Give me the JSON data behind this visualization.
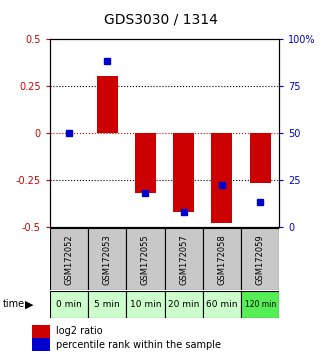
{
  "title": "GDS3030 / 1314",
  "samples": [
    "GSM172052",
    "GSM172053",
    "GSM172055",
    "GSM172057",
    "GSM172058",
    "GSM172059"
  ],
  "time_labels": [
    "0 min",
    "5 min",
    "10 min",
    "20 min",
    "60 min",
    "120 min"
  ],
  "log2_ratio": [
    0.0,
    0.3,
    -0.32,
    -0.42,
    -0.48,
    -0.27
  ],
  "percentile_rank": [
    50.0,
    88.0,
    18.0,
    8.0,
    22.0,
    13.0
  ],
  "ylim_left": [
    -0.5,
    0.5
  ],
  "ylim_right": [
    0,
    100
  ],
  "bar_color": "#cc0000",
  "dot_color": "#0000cc",
  "bg_color_main": "#ffffff",
  "bg_color_sample": "#c8c8c8",
  "bg_color_time_light": "#ccffcc",
  "bg_color_time_dark": "#55ee55",
  "time_dark_idx": 5,
  "left_tick_color": "#cc0000",
  "right_tick_color": "#0000cc",
  "title_fontsize": 10,
  "tick_fontsize": 7,
  "bar_width": 0.55
}
